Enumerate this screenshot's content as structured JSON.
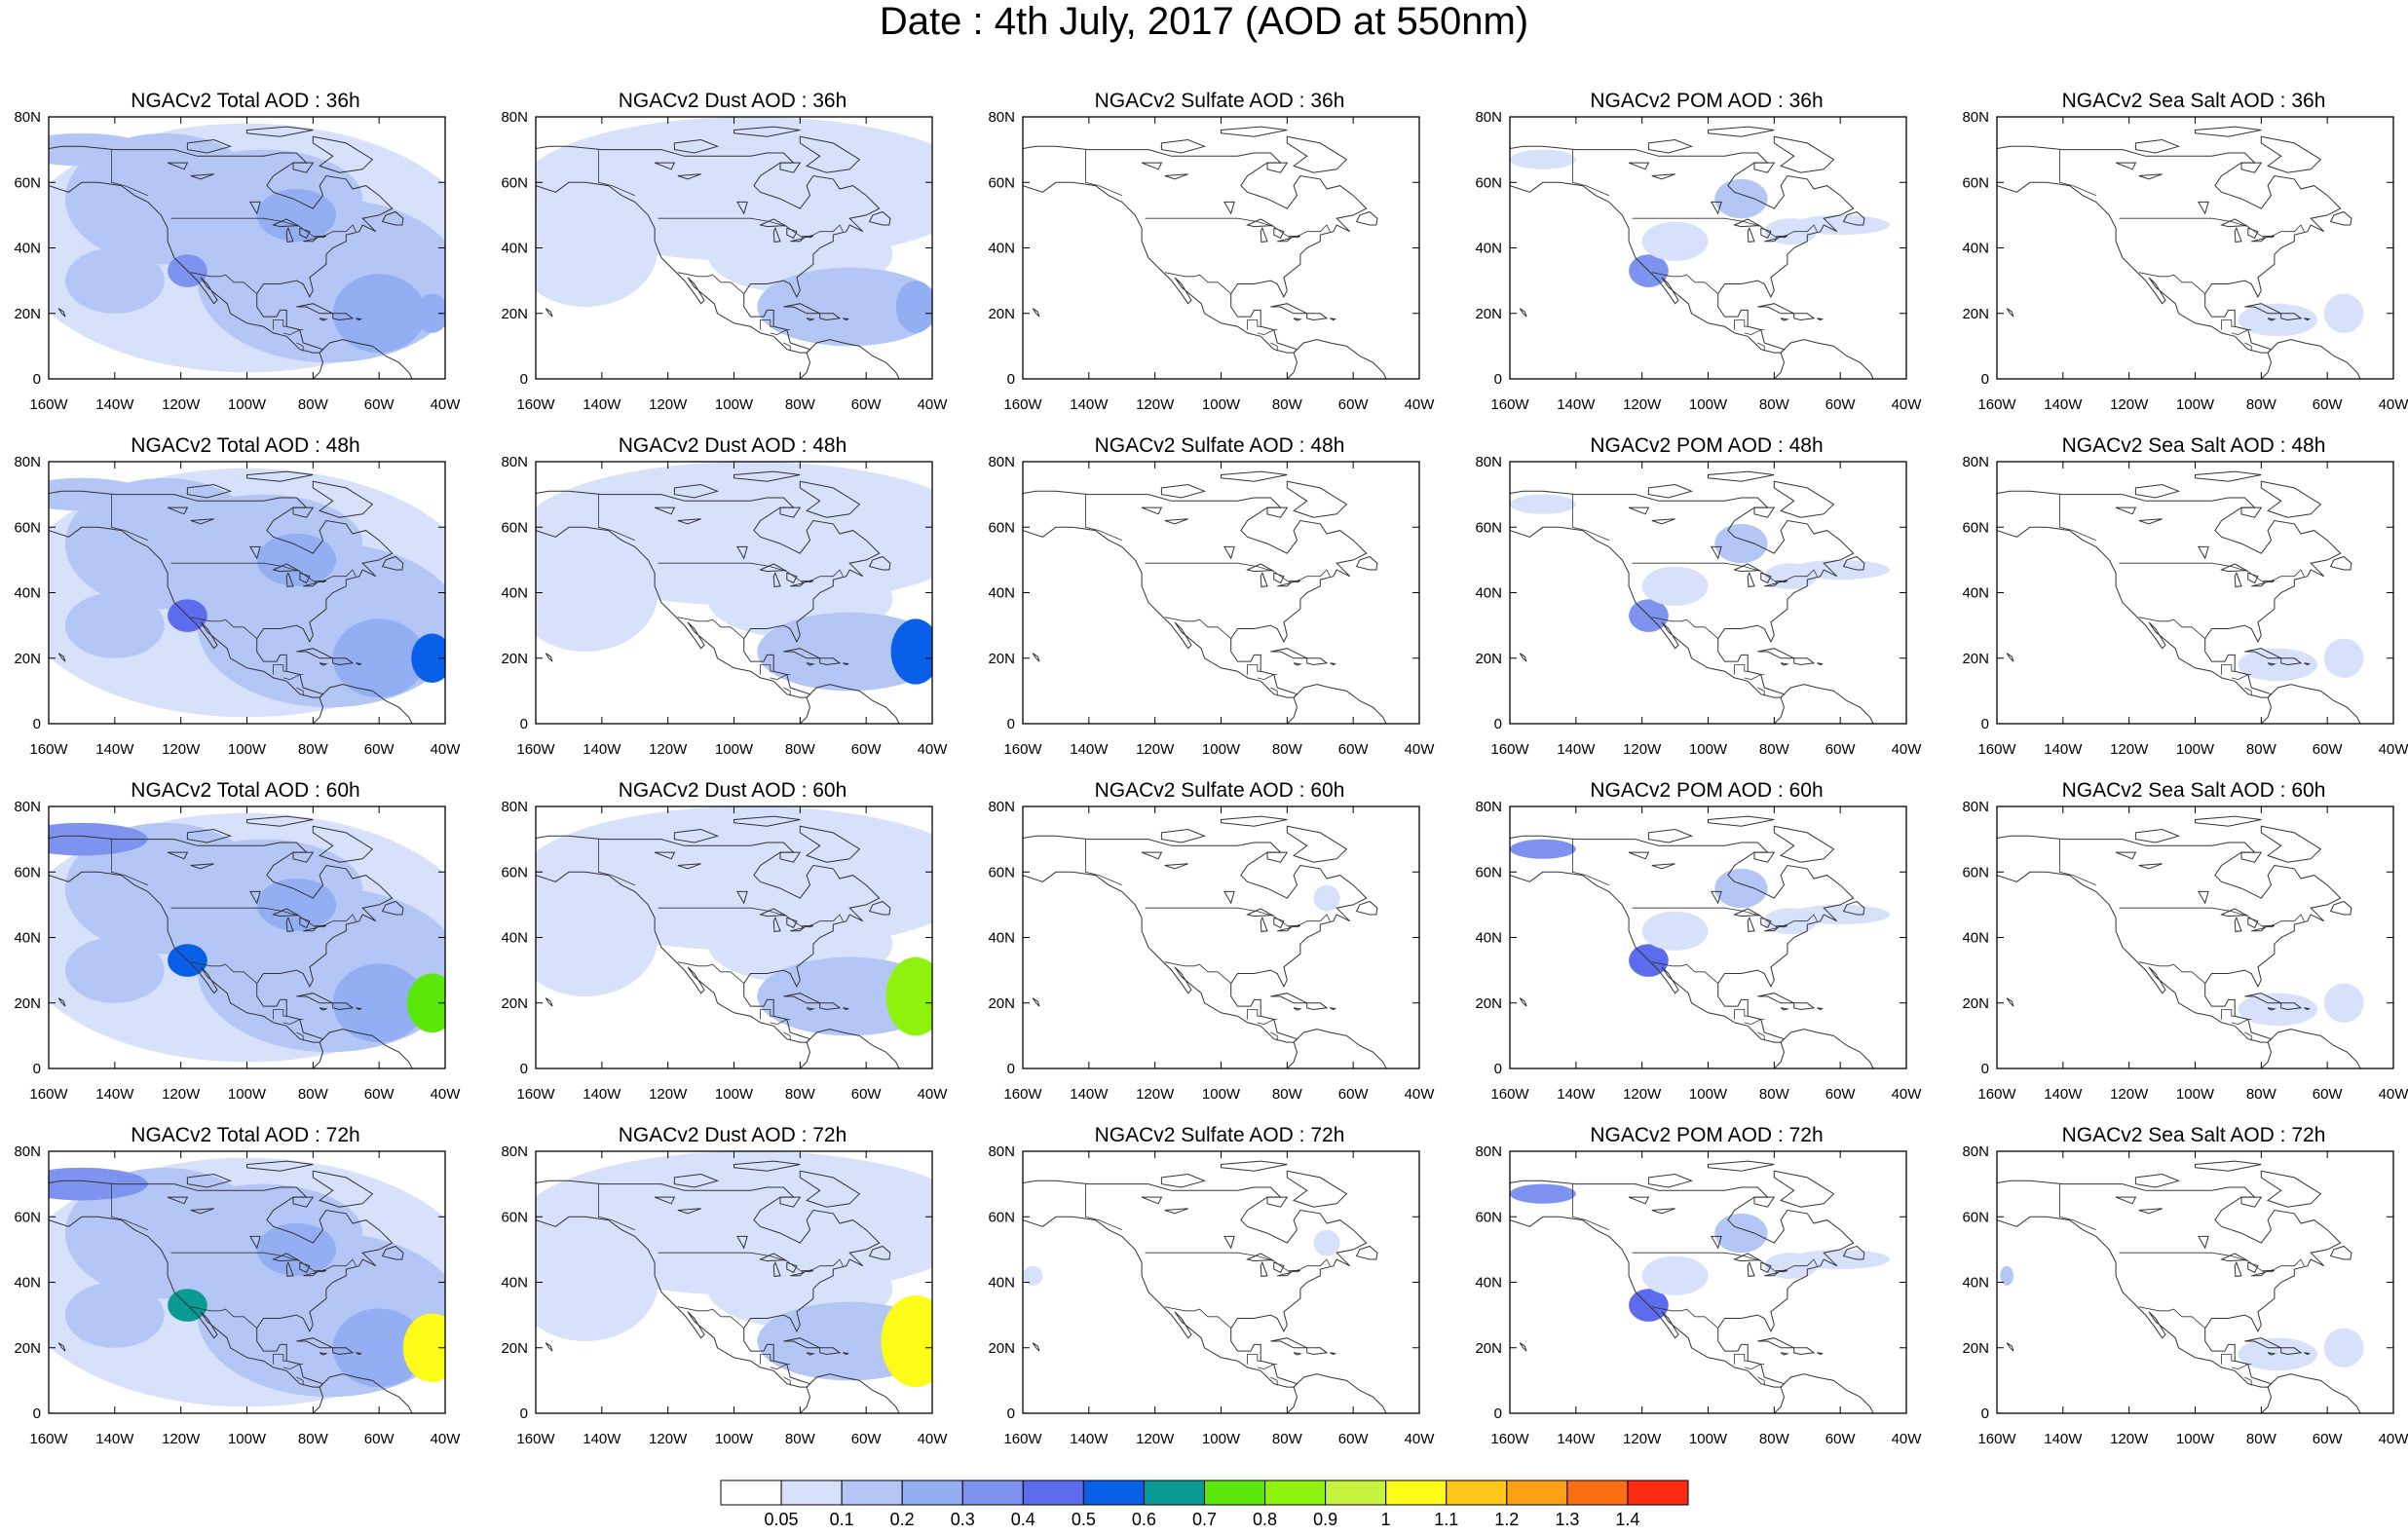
{
  "figure": {
    "title": "Date : 4th July, 2017 (AOD at 550nm)"
  },
  "panels": [
    {
      "title": "NGACv2 Total AOD : 36h",
      "field": "total"
    },
    {
      "title": "NGACv2 Dust AOD : 36h",
      "field": "dust"
    },
    {
      "title": "NGACv2 Sulfate AOD : 36h",
      "field": "sulfate"
    },
    {
      "title": "NGACv2 POM AOD : 36h",
      "field": "pom"
    },
    {
      "title": "NGACv2 Sea Salt AOD : 36h",
      "field": "seasalt"
    },
    {
      "title": "NGACv2 Total AOD : 48h",
      "field": "total"
    },
    {
      "title": "NGACv2 Dust AOD : 48h",
      "field": "dust"
    },
    {
      "title": "NGACv2 Sulfate AOD : 48h",
      "field": "sulfate"
    },
    {
      "title": "NGACv2 POM AOD : 48h",
      "field": "pom"
    },
    {
      "title": "NGACv2 Sea Salt AOD : 48h",
      "field": "seasalt"
    },
    {
      "title": "NGACv2 Total AOD : 60h",
      "field": "total"
    },
    {
      "title": "NGACv2 Dust AOD : 60h",
      "field": "dust"
    },
    {
      "title": "NGACv2 Sulfate AOD : 60h",
      "field": "sulfate"
    },
    {
      "title": "NGACv2 POM AOD : 60h",
      "field": "pom"
    },
    {
      "title": "NGACv2 Sea Salt AOD : 60h",
      "field": "seasalt"
    },
    {
      "title": "NGACv2 Total AOD : 72h",
      "field": "total"
    },
    {
      "title": "NGACv2 Dust AOD : 72h",
      "field": "dust"
    },
    {
      "title": "NGACv2 Sulfate AOD : 72h",
      "field": "sulfate"
    },
    {
      "title": "NGACv2 POM AOD : 72h",
      "field": "pom"
    },
    {
      "title": "NGACv2 Sea Salt  AOD : 72h",
      "field": "seasalt"
    }
  ],
  "axes": {
    "lat_ticks": [
      "80N",
      "60N",
      "40N",
      "20N",
      "0"
    ],
    "lon_ticks": [
      "160W",
      "140W",
      "120W",
      "100W",
      "80W",
      "60W",
      "40W"
    ],
    "lat_range": [
      0,
      80
    ],
    "lon_range": [
      -160,
      -40
    ]
  },
  "colorbar": {
    "labels": [
      "0.05",
      "0.1",
      "0.2",
      "0.3",
      "0.4",
      "0.5",
      "0.6",
      "0.7",
      "0.8",
      "0.9",
      "1",
      "1.1",
      "1.2",
      "1.3",
      "1.4"
    ],
    "colors": [
      "#ffffff",
      "#d7e1fb",
      "#b4c6f6",
      "#93aef3",
      "#7d93ef",
      "#5c6cec",
      "#0a5fe9",
      "#0a9b95",
      "#5ce70b",
      "#8ff20c",
      "#c6f33e",
      "#fdfb18",
      "#fec617",
      "#fea016",
      "#fd6e12",
      "#fd2b12"
    ]
  },
  "colors": {
    "coastline": "#333333",
    "frame": "#000000"
  }
}
